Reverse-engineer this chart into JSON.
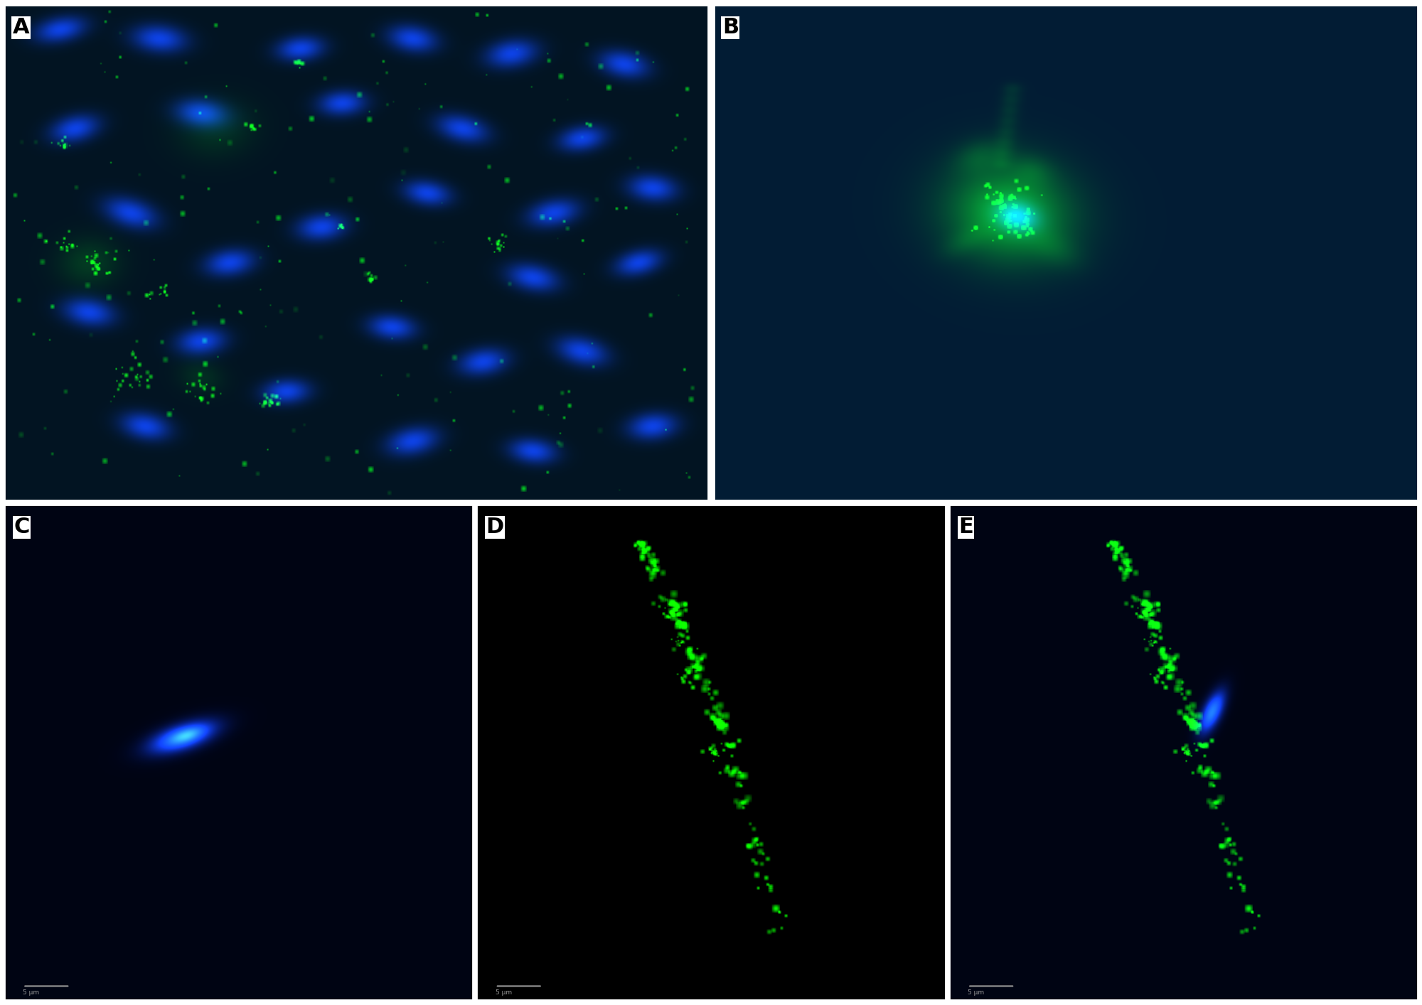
{
  "fig_width": 20.0,
  "fig_height": 14.14,
  "dpi": 100,
  "bg_color": "#ffffff",
  "panel_labels": [
    "A",
    "B",
    "C",
    "D",
    "E"
  ],
  "label_color": "#000000",
  "label_fontsize": 22,
  "label_fontweight": "bold",
  "label_bg": "#ffffff",
  "panel_A_bg": "#020e18",
  "panel_B_bg": "#021525",
  "panel_C_bg": "#00040c",
  "panel_D_bg": "#000000",
  "panel_E_bg": "#00040c",
  "nuclei_A": [
    [
      0.08,
      0.95,
      0.055,
      0.038,
      -10
    ],
    [
      0.22,
      0.93,
      0.058,
      0.042,
      5
    ],
    [
      0.42,
      0.91,
      0.05,
      0.038,
      -5
    ],
    [
      0.58,
      0.93,
      0.052,
      0.04,
      8
    ],
    [
      0.72,
      0.9,
      0.055,
      0.042,
      -8
    ],
    [
      0.88,
      0.88,
      0.053,
      0.04,
      10
    ],
    [
      0.1,
      0.75,
      0.052,
      0.04,
      -12
    ],
    [
      0.28,
      0.78,
      0.055,
      0.042,
      6
    ],
    [
      0.48,
      0.8,
      0.05,
      0.038,
      -3
    ],
    [
      0.65,
      0.75,
      0.055,
      0.04,
      12
    ],
    [
      0.82,
      0.73,
      0.05,
      0.038,
      -8
    ],
    [
      0.92,
      0.63,
      0.052,
      0.04,
      5
    ],
    [
      0.78,
      0.58,
      0.055,
      0.04,
      -10
    ],
    [
      0.6,
      0.62,
      0.05,
      0.038,
      8
    ],
    [
      0.45,
      0.55,
      0.052,
      0.04,
      -5
    ],
    [
      0.18,
      0.58,
      0.058,
      0.043,
      15
    ],
    [
      0.32,
      0.48,
      0.053,
      0.04,
      -7
    ],
    [
      0.75,
      0.45,
      0.055,
      0.04,
      10
    ],
    [
      0.9,
      0.48,
      0.05,
      0.038,
      -12
    ],
    [
      0.12,
      0.38,
      0.055,
      0.042,
      8
    ],
    [
      0.28,
      0.32,
      0.052,
      0.04,
      -5
    ],
    [
      0.55,
      0.35,
      0.05,
      0.038,
      5
    ],
    [
      0.68,
      0.28,
      0.053,
      0.04,
      -8
    ],
    [
      0.82,
      0.3,
      0.055,
      0.042,
      12
    ],
    [
      0.4,
      0.22,
      0.05,
      0.038,
      -3
    ],
    [
      0.2,
      0.15,
      0.052,
      0.04,
      10
    ],
    [
      0.58,
      0.12,
      0.055,
      0.042,
      -10
    ],
    [
      0.75,
      0.1,
      0.05,
      0.038,
      6
    ],
    [
      0.92,
      0.15,
      0.052,
      0.04,
      -5
    ]
  ]
}
